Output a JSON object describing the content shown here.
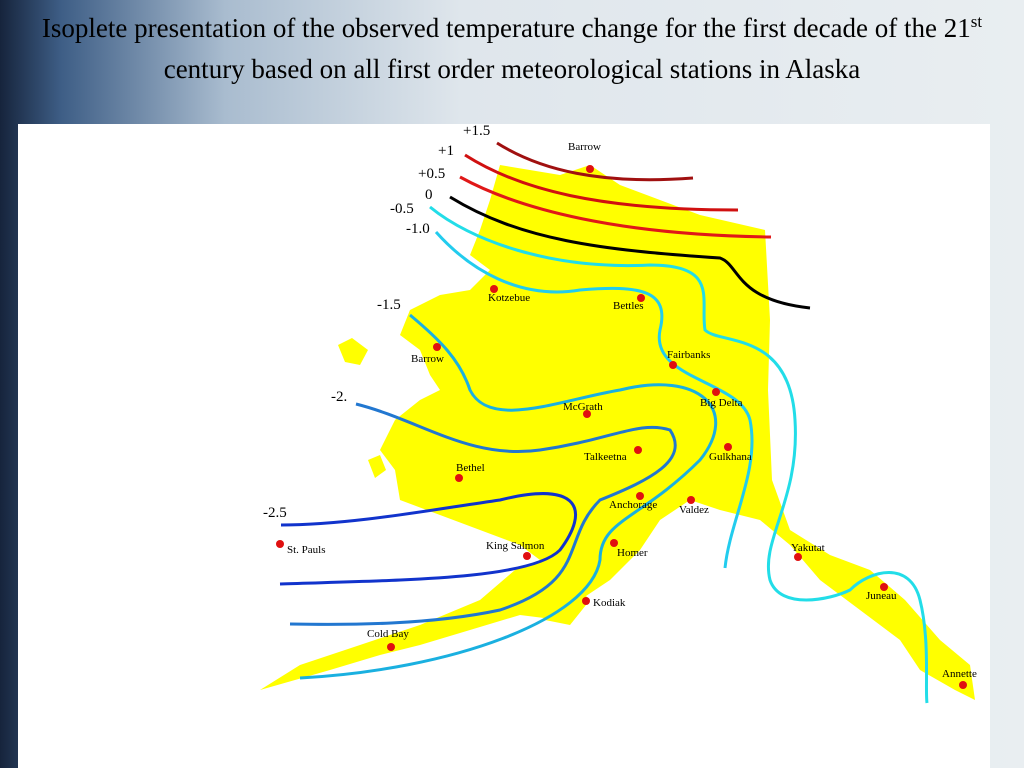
{
  "title": {
    "before": "Isoplete presentation of the observed temperature change for the first decade of the 21",
    "sup": "st",
    "after": " century based on all first order meteorological stations in Alaska"
  },
  "isolines": [
    "+1.5",
    "+1",
    "+0.5",
    "0",
    "-0.5",
    "-1.0",
    "-1.5",
    "-2.",
    "-2.5"
  ],
  "stations": [
    "Barrow",
    "Kotzebue",
    "Bettles",
    "Barrow",
    "Fairbanks",
    "Big Delta",
    "McGrath",
    "Talkeetna",
    "Gulkhana",
    "Bethel",
    "Anchorage",
    "Valdez",
    "St. Pauls",
    "King Salmon",
    "Homer",
    "Yakutat",
    "Kodiak",
    "Juneau",
    "Cold Bay",
    "Annette"
  ]
}
